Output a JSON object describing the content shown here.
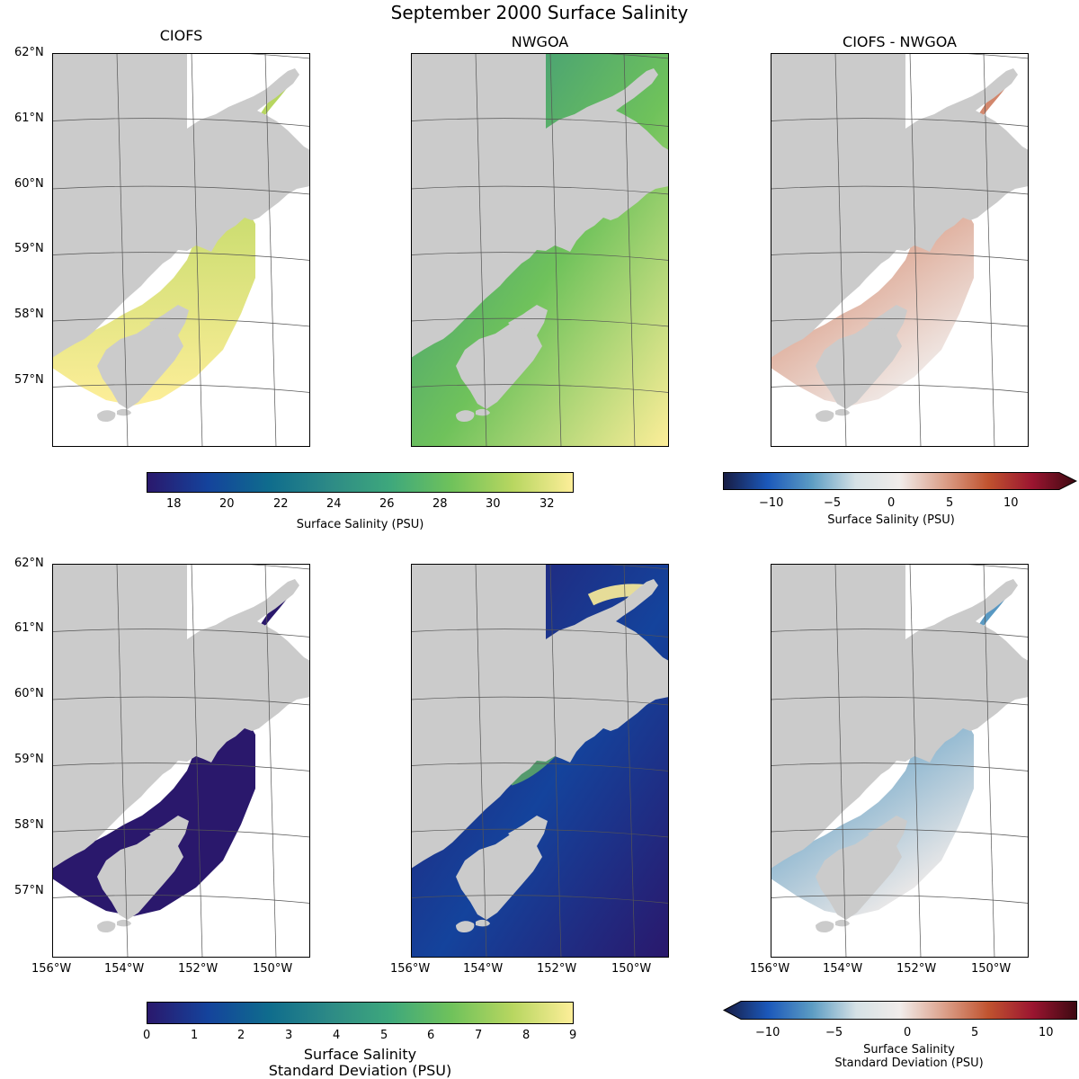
{
  "figure": {
    "title": "September 2000 Surface Salinity",
    "columns": [
      "CIOFS",
      "NWGOA",
      "CIOFS - NWGOA"
    ]
  },
  "axes": {
    "lat_labels": [
      "62°N",
      "61°N",
      "60°N",
      "59°N",
      "58°N",
      "57°N"
    ],
    "lon_labels": [
      "156°W",
      "154°W",
      "152°W",
      "150°W"
    ]
  },
  "colorbars": {
    "mean": {
      "ticks": [
        "18",
        "20",
        "22",
        "24",
        "26",
        "28",
        "30",
        "32"
      ],
      "label": "Surface Salinity (PSU)",
      "range": [
        17,
        33
      ],
      "colormap": "haline"
    },
    "mean_diff": {
      "ticks": [
        "−10",
        "−5",
        "0",
        "5",
        "10"
      ],
      "label": "Surface Salinity (PSU)",
      "range": [
        -14,
        14
      ],
      "extend": "max",
      "colormap": "balance"
    },
    "std": {
      "ticks": [
        "0",
        "1",
        "2",
        "3",
        "4",
        "5",
        "6",
        "7",
        "8",
        "9"
      ],
      "label_line1": "Surface Salinity",
      "label_line2": "Standard Deviation (PSU)",
      "range": [
        0,
        9
      ],
      "colormap": "haline"
    },
    "std_diff": {
      "ticks": [
        "−10",
        "−5",
        "0",
        "5",
        "10"
      ],
      "label_line1": "Surface Salinity",
      "label_line2": "Standard Deviation (PSU)",
      "range": [
        -12.5,
        12.5
      ],
      "extend": "min",
      "colormap": "balance"
    }
  },
  "colors": {
    "land": "#cbcbcb",
    "haline": [
      "#2a186c",
      "#14439c",
      "#0f6c8d",
      "#2d8a86",
      "#3ea87c",
      "#6fc25b",
      "#b7d660",
      "#fdee99"
    ],
    "balance": [
      "#181c43",
      "#1b58ba",
      "#5c9cc3",
      "#d5e1e5",
      "#f1ecea",
      "#dba08a",
      "#c0532f",
      "#9b1530",
      "#3c0911"
    ]
  }
}
